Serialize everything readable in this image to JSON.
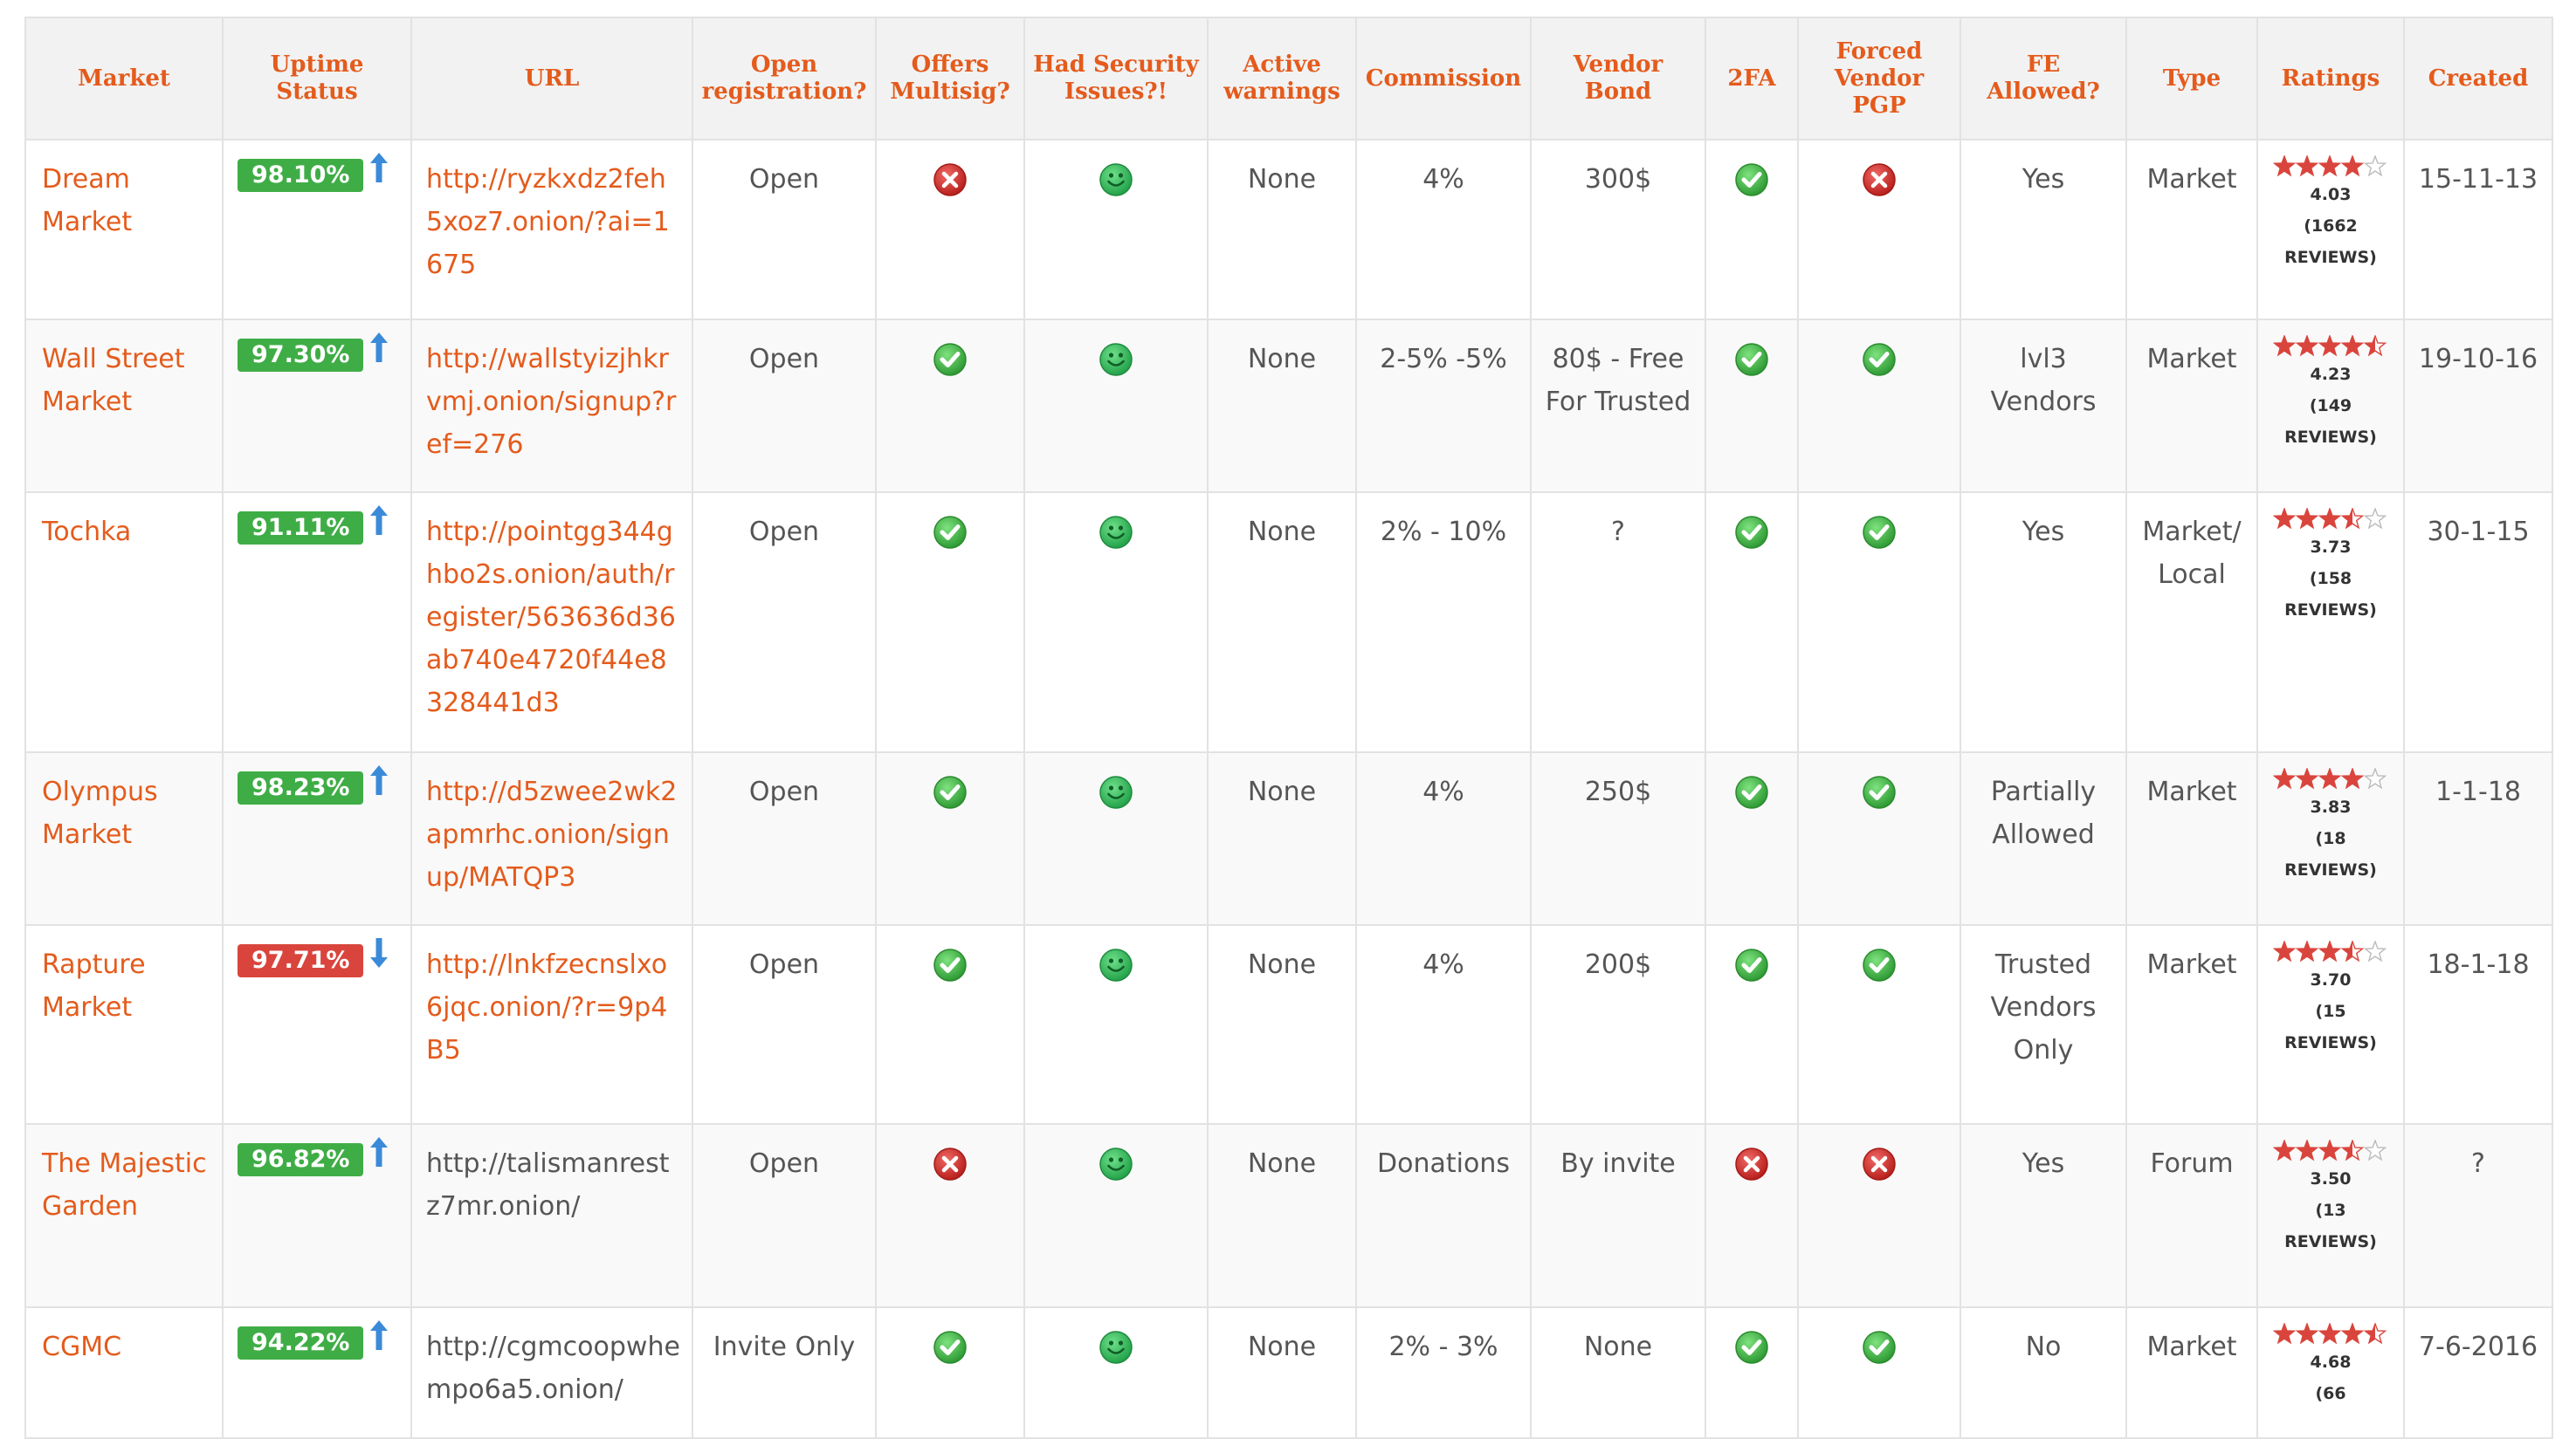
{
  "headers": {
    "market": "Market",
    "uptime": "Uptime Status",
    "url": "URL",
    "open_reg": "Open registration?",
    "multisig": "Offers Multisig?",
    "security": "Had Security Issues?!",
    "warnings": "Active warnings",
    "commission": "Commission",
    "bond": "Vendor Bond",
    "twofa": "2FA",
    "pgp": "Forced Vendor PGP",
    "fe": "FE Allowed?",
    "type": "Type",
    "ratings": "Ratings",
    "created": "Created"
  },
  "colors": {
    "accent": "#e45b1c",
    "good": "#3fad46",
    "bad": "#d9453d",
    "arrow": "#3b8ad9"
  },
  "rows": [
    {
      "market": "Dream Market",
      "uptime": "98.10%",
      "trend": "up",
      "url": "http://ryzkxdz2feh5xoz7.onion/?ai=1675",
      "url_linked": true,
      "open_reg": "Open",
      "multisig": "no",
      "security": "ok",
      "warnings": "None",
      "commission": "4%",
      "bond": "300$",
      "twofa": "yes",
      "pgp": "no",
      "fe": "Yes",
      "type": "Market",
      "stars": 4,
      "rating": "4.03",
      "reviews_count": "(1662",
      "reviews_word": "REVIEWS)",
      "created": "15-11-13"
    },
    {
      "market": "Wall Street Market",
      "uptime": "97.30%",
      "trend": "up",
      "url": "http://wallstyizjhkrvmj.onion/signup?ref=276",
      "url_linked": true,
      "open_reg": "Open",
      "multisig": "yes",
      "security": "ok",
      "warnings": "None",
      "commission": "2-5% -5%",
      "bond": "80$ - Free For Trusted",
      "twofa": "yes",
      "pgp": "yes",
      "fe": "lvl3 Vendors",
      "type": "Market",
      "stars": 4.5,
      "rating": "4.23",
      "reviews_count": "(149",
      "reviews_word": "REVIEWS)",
      "created": "19-10-16"
    },
    {
      "market": "Tochka",
      "uptime": "91.11%",
      "trend": "up",
      "url": "http://pointgg344ghbo2s.onion/auth/register/563636d36ab740e4720f44e8328441d3",
      "url_linked": true,
      "open_reg": "Open",
      "multisig": "yes",
      "security": "ok",
      "warnings": "None",
      "commission": "2% - 10%",
      "bond": "?",
      "twofa": "yes",
      "pgp": "yes",
      "fe": "Yes",
      "type": "Market/ Local",
      "stars": 3.5,
      "rating": "3.73",
      "reviews_count": "(158",
      "reviews_word": "REVIEWS)",
      "created": "30-1-15"
    },
    {
      "market": "Olympus Market",
      "uptime": "98.23%",
      "trend": "up",
      "url": "http://d5zwee2wk2apmrhc.onion/signup/MATQP3",
      "url_linked": true,
      "open_reg": "Open",
      "multisig": "yes",
      "security": "ok",
      "warnings": "None",
      "commission": "4%",
      "bond": "250$",
      "twofa": "yes",
      "pgp": "yes",
      "fe": "Partially Allowed",
      "type": "Market",
      "stars": 4,
      "rating": "3.83",
      "reviews_count": "(18",
      "reviews_word": "REVIEWS)",
      "created": "1-1-18"
    },
    {
      "market": "Rapture Market",
      "uptime": "97.71%",
      "trend": "down",
      "url": "http://lnkfzecnslxo6jqc.onion/?r=9p4B5",
      "url_linked": true,
      "open_reg": "Open",
      "multisig": "yes",
      "security": "ok",
      "warnings": "None",
      "commission": "4%",
      "bond": "200$",
      "twofa": "yes",
      "pgp": "yes",
      "fe": "Trusted Vendors Only",
      "type": "Market",
      "stars": 3.5,
      "rating": "3.70",
      "reviews_count": "(15",
      "reviews_word": "REVIEWS)",
      "created": "18-1-18"
    },
    {
      "market": "The Majestic Garden",
      "uptime": "96.82%",
      "trend": "up",
      "url": "http://talismanrestz7mr.onion/",
      "url_linked": false,
      "open_reg": "Open",
      "multisig": "no",
      "security": "ok",
      "warnings": "None",
      "commission": "Donations",
      "bond": "By invite",
      "twofa": "no",
      "pgp": "no",
      "fe": "Yes",
      "type": "Forum",
      "stars": 3.5,
      "rating": "3.50",
      "reviews_count": "(13",
      "reviews_word": "REVIEWS)",
      "created": "?"
    },
    {
      "market": "CGMC",
      "uptime": "94.22%",
      "trend": "up",
      "url": "http://cgmcoopwhempo6a5.onion/",
      "url_linked": false,
      "open_reg": "Invite Only",
      "multisig": "yes",
      "security": "ok",
      "warnings": "None",
      "commission": "2% - 3%",
      "bond": "None",
      "twofa": "yes",
      "pgp": "yes",
      "fe": "No",
      "type": "Market",
      "stars": 4.5,
      "rating": "4.68",
      "reviews_count": "(66",
      "reviews_word": "",
      "created": "7-6-2016"
    }
  ]
}
